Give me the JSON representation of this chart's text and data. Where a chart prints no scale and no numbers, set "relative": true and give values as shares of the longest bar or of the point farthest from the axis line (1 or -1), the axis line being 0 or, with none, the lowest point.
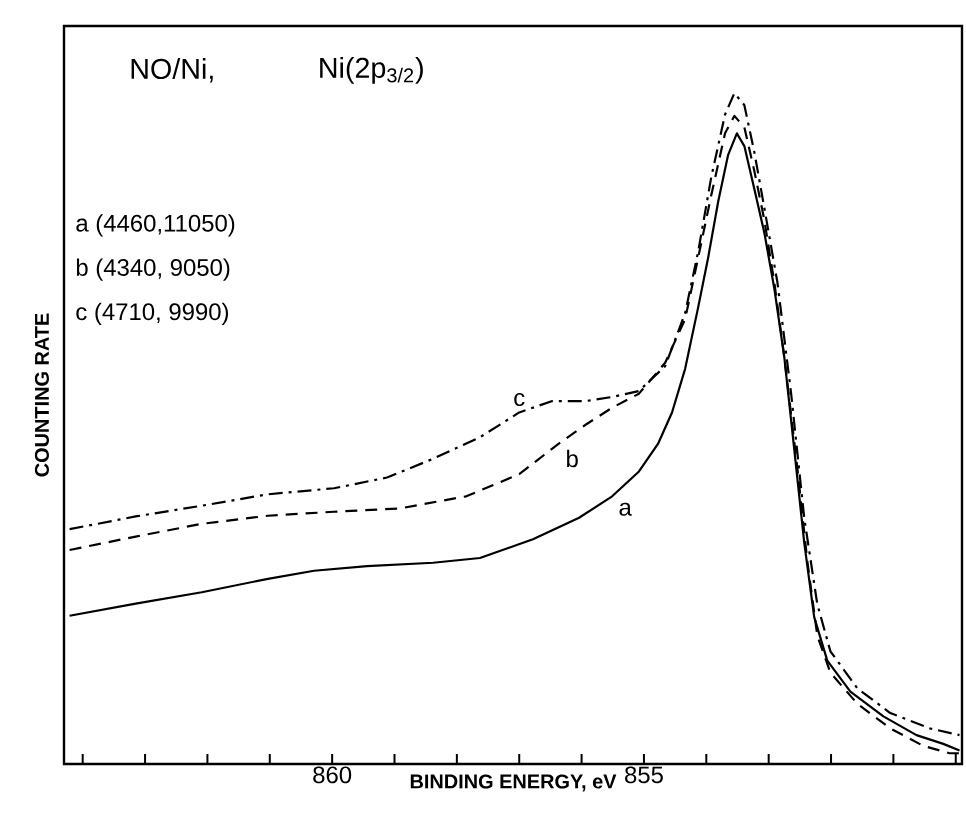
{
  "chart_data": {
    "type": "line",
    "xlabel": "BINDING ENERGY, eV",
    "ylabel": "COUNTING RATE",
    "relative": true,
    "annotations": [
      "NO/Ni,",
      "Ni(2p$_{3/2}$)",
      "a (4460,11050)",
      "b (4340, 9050)",
      "c (4710, 9990)"
    ],
    "xlim": [
      864.3,
      849.9
    ],
    "xticks": [
      {
        "value": 864,
        "label": null
      },
      {
        "value": 863,
        "label": null
      },
      {
        "value": 862,
        "label": null
      },
      {
        "value": 861,
        "label": null
      },
      860,
      {
        "value": 859,
        "label": null
      },
      {
        "value": 858,
        "label": null
      },
      {
        "value": 857,
        "label": null
      },
      {
        "value": 856,
        "label": null
      },
      855,
      {
        "value": 854,
        "label": null
      },
      {
        "value": 853,
        "label": null
      },
      {
        "value": 852,
        "label": null
      },
      {
        "value": 851,
        "label": null
      },
      {
        "value": 850,
        "label": null
      }
    ],
    "grid": false,
    "legend": false,
    "marker": "none",
    "series": [
      {
        "name": "a",
        "color": "#000000",
        "line_style": "solid",
        "x": [
          864.21,
          863.15,
          862.09,
          861.03,
          860.29,
          859.44,
          858.38,
          857.63,
          856.78,
          856.04,
          855.51,
          855.08,
          854.77,
          854.55,
          854.34,
          854.13,
          853.97,
          853.81,
          853.65,
          853.51,
          853.39,
          853.23,
          853.07,
          852.91,
          852.75,
          852.59,
          852.43,
          852.27,
          852.06,
          851.69,
          851.16,
          850.63,
          850.2,
          849.94
        ],
        "values": [
          0.221,
          0.239,
          0.256,
          0.276,
          0.288,
          0.295,
          0.3,
          0.307,
          0.335,
          0.367,
          0.399,
          0.436,
          0.478,
          0.524,
          0.589,
          0.681,
          0.755,
          0.838,
          0.908,
          0.94,
          0.921,
          0.857,
          0.792,
          0.709,
          0.607,
          0.469,
          0.33,
          0.219,
          0.154,
          0.108,
          0.071,
          0.043,
          0.03,
          0.02
        ]
      },
      {
        "name": "b",
        "color": "#000000",
        "line_style": "dashed",
        "x": [
          864.21,
          863.15,
          862.09,
          861.03,
          859.97,
          858.91,
          857.85,
          857.0,
          856.36,
          855.93,
          855.51,
          855.08,
          854.66,
          854.34,
          854.13,
          853.92,
          853.7,
          853.55,
          853.39,
          853.23,
          853.07,
          852.91,
          852.75,
          852.54,
          852.38,
          852.22,
          852.01,
          851.58,
          851.05,
          850.52,
          850.1,
          849.94
        ],
        "values": [
          0.319,
          0.339,
          0.358,
          0.37,
          0.376,
          0.381,
          0.399,
          0.432,
          0.478,
          0.506,
          0.531,
          0.552,
          0.598,
          0.663,
          0.755,
          0.848,
          0.94,
          0.966,
          0.949,
          0.884,
          0.811,
          0.718,
          0.607,
          0.441,
          0.302,
          0.191,
          0.136,
          0.09,
          0.053,
          0.027,
          0.016,
          0.016
        ]
      },
      {
        "name": "c",
        "color": "#000000",
        "line_style": "dashdot",
        "x": [
          864.21,
          863.15,
          862.09,
          861.03,
          859.97,
          859.12,
          858.38,
          857.63,
          857.0,
          856.47,
          855.93,
          855.51,
          855.08,
          854.66,
          854.34,
          854.13,
          853.92,
          853.7,
          853.55,
          853.39,
          853.23,
          853.07,
          852.86,
          852.64,
          852.43,
          852.22,
          852.01,
          851.58,
          851.05,
          850.41,
          849.94
        ],
        "values": [
          0.35,
          0.369,
          0.385,
          0.402,
          0.411,
          0.427,
          0.455,
          0.487,
          0.524,
          0.541,
          0.541,
          0.547,
          0.556,
          0.593,
          0.672,
          0.764,
          0.875,
          0.968,
          1,
          0.982,
          0.912,
          0.829,
          0.718,
          0.552,
          0.367,
          0.238,
          0.168,
          0.113,
          0.076,
          0.053,
          0.043
        ]
      }
    ]
  }
}
